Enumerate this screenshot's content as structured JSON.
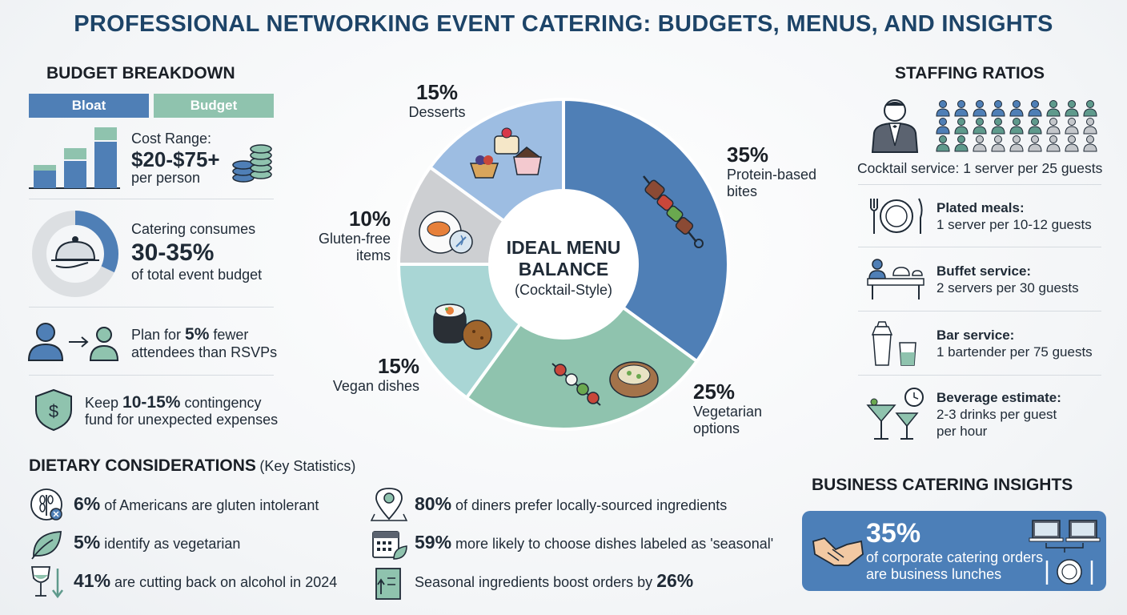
{
  "title": "PROFESSIONAL NETWORKING EVENT CATERING: BUDGETS, MENUS, AND INSIGHTS",
  "budget": {
    "heading": "BUDGET BREAKDOWN",
    "legend": [
      "Bloat",
      "Budget"
    ],
    "cost_label": "Cost Range:",
    "cost_value": "$20-$75+",
    "cost_unit": "per person",
    "consumes_label": "Catering consumes",
    "consumes_value": "30-35%",
    "consumes_unit": "of total event budget",
    "consumes_fraction": 0.32,
    "plan_pre": "Plan for ",
    "plan_value": "5%",
    "plan_post": " fewer",
    "plan_line2": "attendees than RSVPs",
    "keep_pre": "Keep ",
    "keep_value": "10-15%",
    "keep_post": " contingency",
    "keep_line2": "fund for unexpected expenses"
  },
  "menu": {
    "center_line1": "IDEAL MENU",
    "center_line2": "BALANCE",
    "center_line3": "(Cocktail-Style)",
    "slices": [
      {
        "pct": "35%",
        "value": 35,
        "label1": "Protein-based",
        "label2": "bites",
        "color": "#4f7fb6"
      },
      {
        "pct": "25%",
        "value": 25,
        "label1": "Vegetarian",
        "label2": "options",
        "color": "#8fc3ae"
      },
      {
        "pct": "15%",
        "value": 15,
        "label1": "Vegan dishes",
        "label2": "",
        "color": "#a9d6d5"
      },
      {
        "pct": "10%",
        "value": 10,
        "label1": "Gluten-free",
        "label2": "items",
        "color": "#cdcfd2"
      },
      {
        "pct": "15%",
        "value": 15,
        "label1": "Desserts",
        "label2": "",
        "color": "#9dbde2"
      }
    ]
  },
  "staffing": {
    "heading": "STAFFING RATIOS",
    "cocktail": "Cocktail service: 1 server per 25 guests",
    "items": [
      {
        "title": "Plated meals:",
        "line1": "1 server per 10-12 guests",
        "line2": ""
      },
      {
        "title": "Buffet service:",
        "line1": "2 servers per 30 guests",
        "line2": ""
      },
      {
        "title": "Bar service:",
        "line1": "1 bartender per 75 guests",
        "line2": ""
      },
      {
        "title": "Beverage estimate:",
        "line1": "2-3 drinks per guest",
        "line2": "per hour"
      }
    ]
  },
  "dietary": {
    "heading": "DIETARY CONSIDERATIONS",
    "subheading": "(Key Statistics)",
    "left": [
      {
        "num": "6%",
        "text": " of Americans are gluten intolerant",
        "icon": "gluten-icon"
      },
      {
        "num": "5%",
        "text": " identify as vegetarian",
        "icon": "leaf-icon"
      },
      {
        "num": "41%",
        "text": " are cutting back on alcohol in 2024",
        "icon": "wine-icon"
      }
    ],
    "right": [
      {
        "num": "80%",
        "text": " of diners prefer locally-sourced ingredients",
        "icon": "location-icon"
      },
      {
        "num": "59%",
        "text": " more likely to choose dishes labeled as 'seasonal'",
        "icon": "calendar-icon"
      }
    ],
    "seasonal_pre": "Seasonal ingredients boost orders by ",
    "seasonal_num": "26%"
  },
  "insights": {
    "heading": "BUSINESS CATERING INSIGHTS",
    "num": "35%",
    "line1": "of corporate catering orders",
    "line2": "are business lunches"
  },
  "colors": {
    "title": "#1d4468",
    "blue": "#4f7fb6",
    "green": "#8fc3ae",
    "teal": "#5f9a8c"
  }
}
